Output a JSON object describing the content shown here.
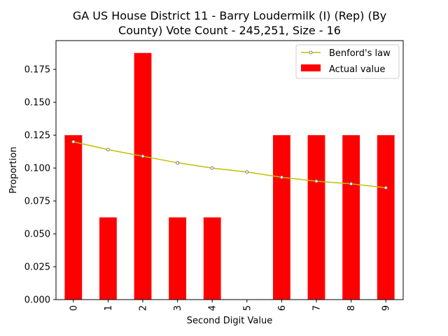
{
  "chart_data": {
    "type": "bar",
    "title_line1": "GA US House District 11 - Barry Loudermilk (I) (Rep) (By",
    "title_line2": "County) Vote Count - 245,251, Size - 16",
    "xlabel": "Second Digit Value",
    "ylabel": "Proportion",
    "categories": [
      "0",
      "1",
      "2",
      "3",
      "4",
      "5",
      "6",
      "7",
      "8",
      "9"
    ],
    "series": [
      {
        "name": "Actual value",
        "kind": "bar",
        "color": "#ff0000",
        "values": [
          0.125,
          0.0625,
          0.1875,
          0.0625,
          0.0625,
          0.0,
          0.125,
          0.125,
          0.125,
          0.125
        ]
      },
      {
        "name": "Benford's law",
        "kind": "line",
        "color": "#bfbf00",
        "values": [
          0.12,
          0.114,
          0.109,
          0.104,
          0.1,
          0.097,
          0.093,
          0.09,
          0.088,
          0.085
        ]
      }
    ],
    "yticks": [
      "0.000",
      "0.025",
      "0.050",
      "0.075",
      "0.100",
      "0.125",
      "0.150",
      "0.175"
    ],
    "ylim": [
      0,
      0.1969
    ],
    "grid": false,
    "legend_position": "top-right"
  }
}
